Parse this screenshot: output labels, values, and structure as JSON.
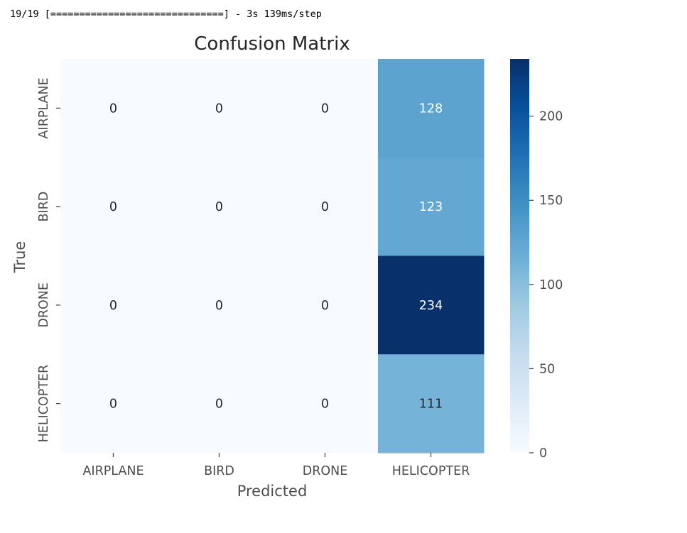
{
  "console": {
    "progress_line": "19/19 [==============================] - 3s 139ms/step"
  },
  "chart_data": {
    "type": "heatmap",
    "title": "Confusion Matrix",
    "xlabel": "Predicted",
    "ylabel": "True",
    "x_categories": [
      "AIRPLANE",
      "BIRD",
      "DRONE",
      "HELICOPTER"
    ],
    "y_categories": [
      "AIRPLANE",
      "BIRD",
      "DRONE",
      "HELICOPTER"
    ],
    "values": [
      [
        0,
        0,
        0,
        128
      ],
      [
        0,
        0,
        0,
        123
      ],
      [
        0,
        0,
        0,
        234
      ],
      [
        0,
        0,
        0,
        111
      ]
    ],
    "colormap": "Blues",
    "colormap_stops": [
      "#f7fbff",
      "#deebf7",
      "#c6dbef",
      "#9ecae1",
      "#6baed6",
      "#4292c6",
      "#2171b5",
      "#08519c",
      "#08306b"
    ],
    "vmin": 0,
    "vmax": 234,
    "colorbar_ticks": [
      0,
      50,
      100,
      150,
      200
    ],
    "annotation_colors": {
      "light": "#ffffff",
      "dark": "#262626"
    }
  }
}
